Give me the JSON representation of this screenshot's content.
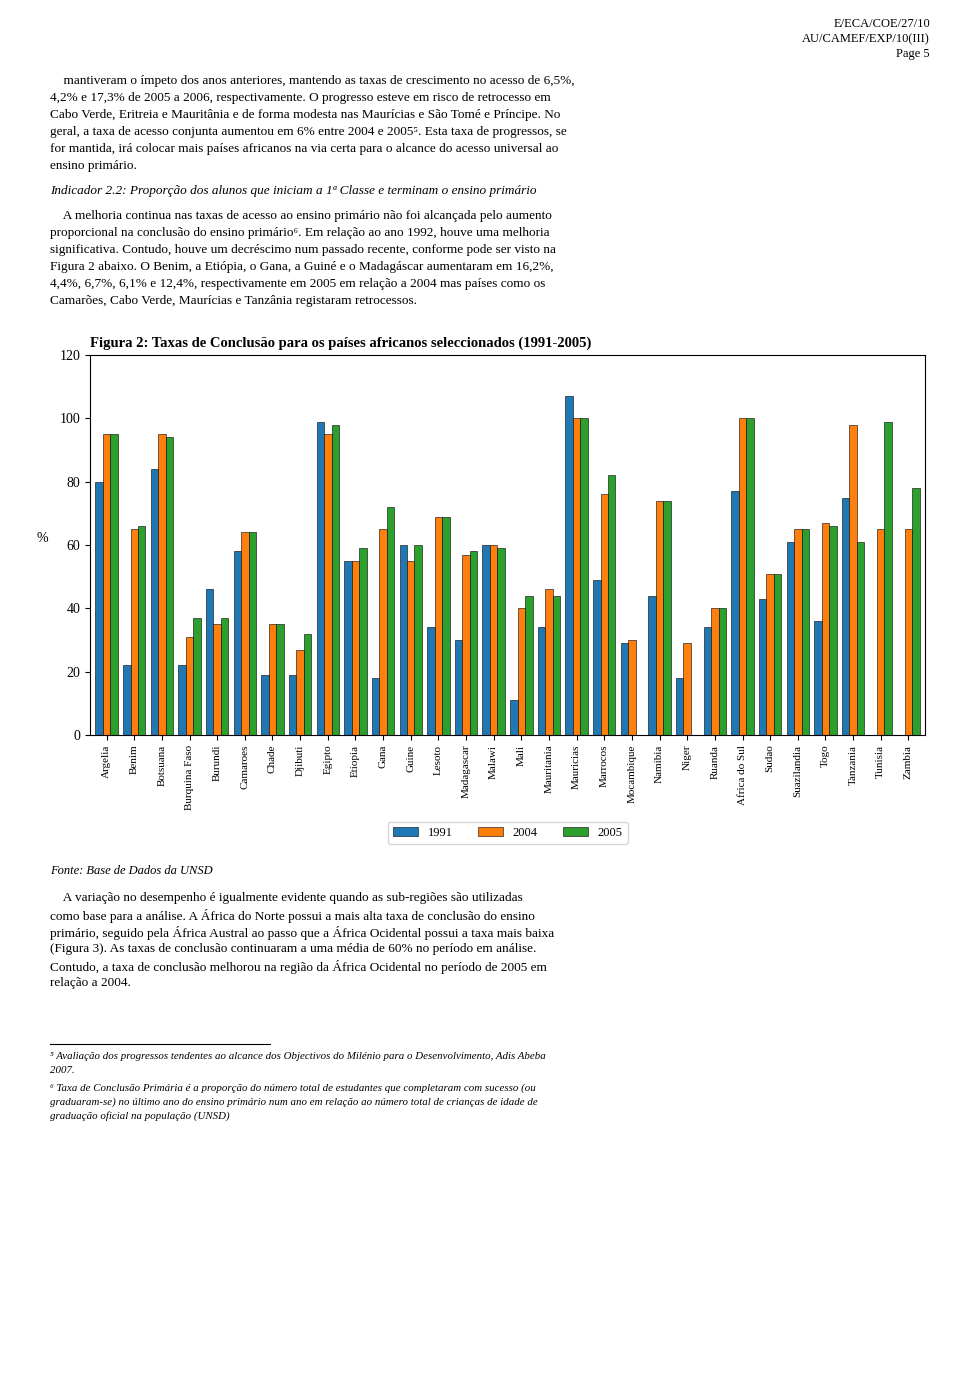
{
  "chart_data": {
    "type": "bar",
    "title": "Figura 2: Taxas de Conclusão para os países africanos seleccionados (1991-2005)",
    "y_label": "%",
    "categories": [
      "Argelia",
      "Benim",
      "Botsuana",
      "Burquina Faso",
      "Burundi",
      "Camaroes",
      "Chade",
      "Djibuti",
      "Egipto",
      "Etiopia",
      "Gana",
      "Guine",
      "Lesoto",
      "Madagascar",
      "Malawi",
      "Mali",
      "Mauritania",
      "Mauricias",
      "Marrocos",
      "Mocambique",
      "Namibia",
      "Niger",
      "Ruanda",
      "Africa do Sul",
      "Sudao",
      "Suazilandia",
      "Togo",
      "Tanzania",
      "Tunisia",
      "Zambia"
    ],
    "series": [
      {
        "name": "1991",
        "values": [
          80,
          22,
          84,
          22,
          46,
          58,
          19,
          19,
          99,
          55,
          18,
          60,
          34,
          30,
          60,
          11,
          34,
          107,
          49,
          29,
          44,
          18,
          34,
          77,
          43,
          61,
          36,
          75,
          null,
          null
        ]
      },
      {
        "name": "2004",
        "values": [
          95,
          65,
          95,
          31,
          35,
          64,
          35,
          27,
          95,
          55,
          65,
          55,
          69,
          57,
          60,
          40,
          46,
          100,
          76,
          30,
          74,
          29,
          40,
          100,
          51,
          65,
          67,
          98,
          65,
          65
        ]
      },
      {
        "name": "2005",
        "values": [
          95,
          66,
          94,
          37,
          37,
          64,
          35,
          32,
          98,
          59,
          72,
          60,
          69,
          58,
          59,
          44,
          44,
          100,
          82,
          null,
          74,
          null,
          40,
          100,
          51,
          65,
          66,
          61,
          99,
          78
        ]
      }
    ],
    "ylim": [
      0,
      120
    ],
    "yticks": [
      0,
      20,
      40,
      60,
      80,
      100,
      120
    ],
    "grid": false,
    "legend": "lower center",
    "annotations": [
      [
        "E/ECA/COE/27/10",
        "AU/CAMEF/EXP/10(III)",
        "Page 5"
      ],
      [
        "    mantiveram o ímpeto dos anos anteriores, mantendo as taxas de crescimento no acesso de 6,5%,",
        "4,2% e 17,3% de 2005 a 2006, respectivamente. O progresso esteve em risco de retrocesso em",
        "Cabo Verde, Eritreia e Mauritânia e de forma modesta nas Maurícias e São Tomé e Príncipe. No",
        "geral, a taxa de acesso conjunta aumentou em 6% entre 2004 e 2005⁵. Esta taxa de progressos, se",
        "for mantida, irá colocar mais países africanos na via certa para o alcance do acesso universal ao",
        "ensino primário."
      ],
      [
        "Indicador 2.2: Proporção dos alunos que iniciam a 1ª Classe e terminam o ensino primário"
      ],
      [
        "    A melhoria continua nas taxas de acesso ao ensino primário não foi alcançada pelo aumento",
        "proporcional na conclusão do ensino primário⁶. Em relação ao ano 1992, houve uma melhoria",
        "significativa. Contudo, houve um decréscimo num passado recente, conforme pode ser visto na",
        "Figura 2 abaixo. O Benim, a Etiópia, o Gana, a Guiné e o Madagáscar aumentaram em 16,2%,",
        "4,4%, 6,7%, 6,1% e 12,4%, respectivamente em 2005 em relação a 2004 mas países como os",
        "Camarões, Cabo Verde, Maurícias e Tanzânia registaram retrocessos."
      ],
      [
        "Fonte: Base de Dados da UNSD"
      ],
      [
        "    A variação no desempenho é igualmente evidente quando as sub-regiões são utilizadas",
        "como base para a análise. A África do Norte possui a mais alta taxa de conclusão do ensino",
        "primário, seguido pela África Austral ao passo que a África Ocidental possui a taxa mais baixa",
        "(Figura 3). As taxas de conclusão continuaram a uma média de 60% no período em análise.",
        "Contudo, a taxa de conclusão melhorou na região da África Ocidental no período de 2005 em",
        "relação a 2004."
      ],
      [
        "⁵ Avaliação dos progressos tendentes ao alcance dos Objectivos do Milénio para o Desenvolvimento, Adis Abeba",
        "2007."
      ],
      [
        "⁶ Taxa de Conclusão Primária é a proporção do número total de estudantes que completaram com sucesso (ou",
        "graduaram-se) no último ano do ensino primário num ano em relação ao número total de crianças de idade de",
        "graduação oficial na população (UNSD)"
      ]
    ]
  }
}
